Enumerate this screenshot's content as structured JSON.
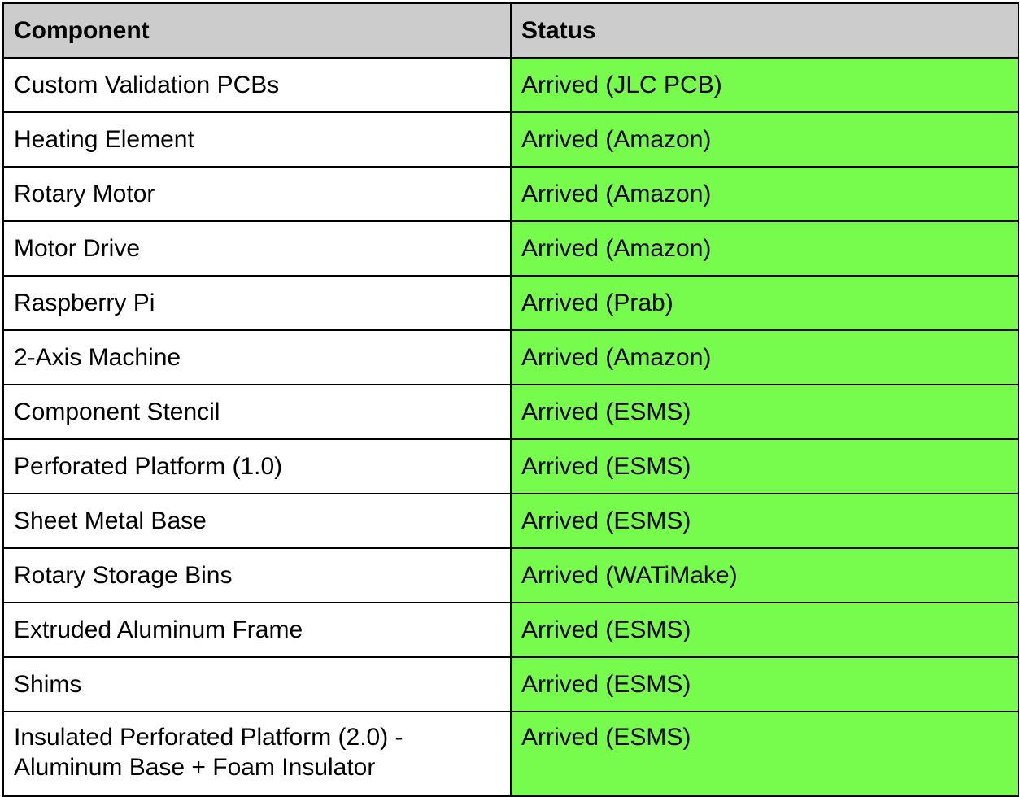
{
  "table": {
    "headers": [
      "Component",
      "Status"
    ],
    "rows": [
      {
        "component": "Custom Validation PCBs",
        "status": "Arrived (JLC PCB)"
      },
      {
        "component": "Heating Element",
        "status": "Arrived (Amazon)"
      },
      {
        "component": "Rotary Motor",
        "status": "Arrived (Amazon)"
      },
      {
        "component": "Motor Drive",
        "status": "Arrived (Amazon)"
      },
      {
        "component": "Raspberry Pi",
        "status": "Arrived (Prab)"
      },
      {
        "component": "2-Axis Machine",
        "status": "Arrived (Amazon)"
      },
      {
        "component": "Component Stencil",
        "status": "Arrived (ESMS)"
      },
      {
        "component": "Perforated Platform (1.0)",
        "status": "Arrived (ESMS)"
      },
      {
        "component": "Sheet Metal Base",
        "status": "Arrived (ESMS)"
      },
      {
        "component": "Rotary Storage Bins",
        "status": "Arrived (WATiMake)"
      },
      {
        "component": "Extruded Aluminum Frame",
        "status": "Arrived (ESMS)"
      },
      {
        "component": "Shims",
        "status": "Arrived (ESMS)"
      },
      {
        "component": "Insulated Perforated Platform (2.0) - Aluminum Base + Foam Insulator",
        "status": "Arrived (ESMS)"
      }
    ]
  },
  "colors": {
    "header_bg": "#cccccc",
    "status_bg": "#77fb4d",
    "border": "#000000"
  }
}
